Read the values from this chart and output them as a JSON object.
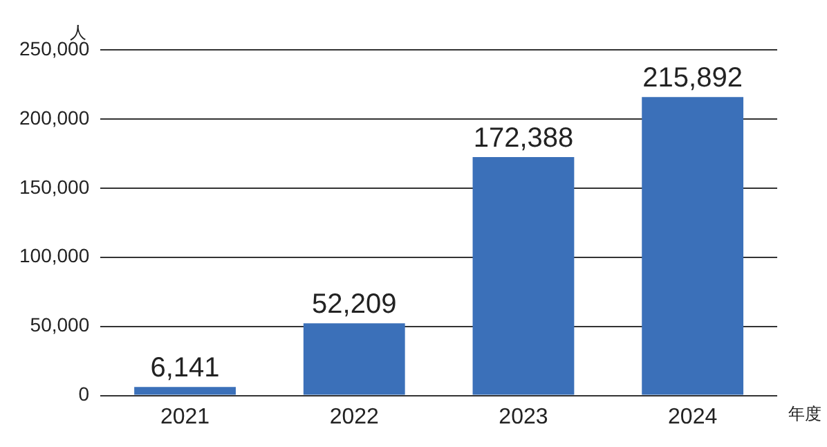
{
  "chart_data": {
    "type": "bar",
    "ylabel": "人",
    "xlabel": "年度",
    "categories": [
      "2021",
      "2022",
      "2023",
      "2024"
    ],
    "values": [
      6141,
      52209,
      172388,
      215892
    ],
    "color": "#3b70b9",
    "ylim": [
      0,
      250000
    ],
    "yticks": [
      {
        "value": 0,
        "label": "0"
      },
      {
        "value": 50000,
        "label": "50,000"
      },
      {
        "value": 100000,
        "label": "100,000"
      },
      {
        "value": 150000,
        "label": "150,000"
      },
      {
        "value": 200000,
        "label": "200,000"
      },
      {
        "value": 250000,
        "label": "250,000"
      }
    ],
    "value_labels": [
      "6,141",
      "52,209",
      "172,388",
      "215,892"
    ],
    "grid": "y"
  }
}
